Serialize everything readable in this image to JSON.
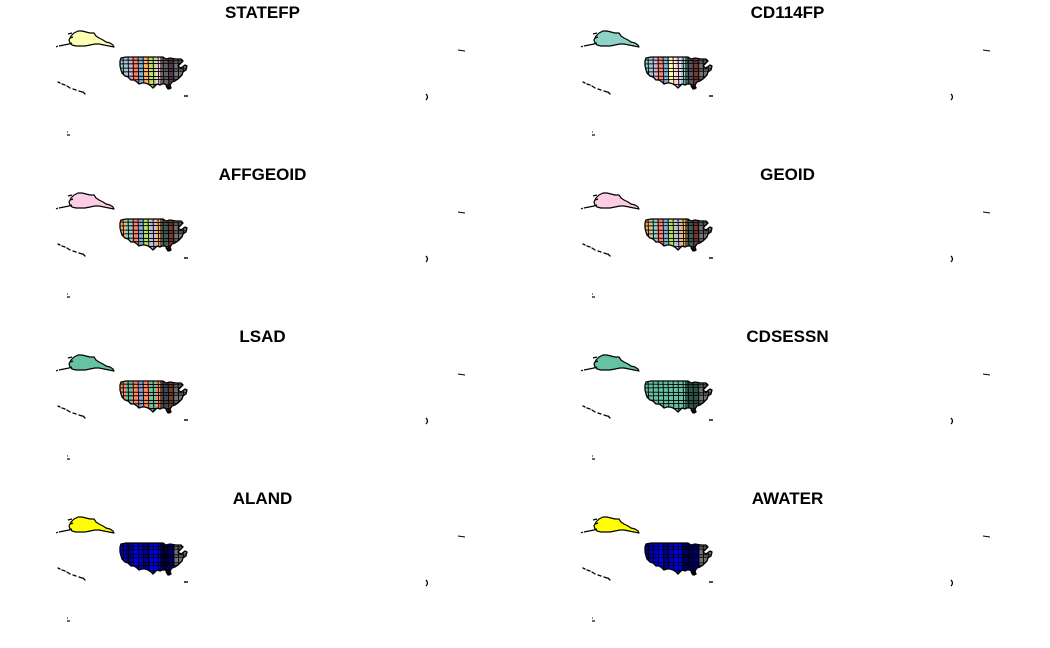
{
  "panels": [
    {
      "title": "STATEFP",
      "palette": "set2-pastel",
      "alaska": "#ffffb3",
      "conus": [
        "#8dd3c7",
        "#bebada",
        "#fb8072",
        "#80b1d3",
        "#fdb462",
        "#b3de69",
        "#fccde5",
        "#d9d9d9",
        "#bc80bd"
      ]
    },
    {
      "title": "CD114FP",
      "palette": "set3",
      "alaska": "#8dd3c7",
      "conus": [
        "#8dd3c7",
        "#bebada",
        "#fb8072",
        "#80b1d3",
        "#ffffb3",
        "#fccde5"
      ]
    },
    {
      "title": "AFFGEOID",
      "palette": "set3",
      "alaska": "#fccde5",
      "conus": [
        "#fdb462",
        "#8dd3c7",
        "#fb8072",
        "#80b1d3",
        "#b3de69",
        "#bebada"
      ]
    },
    {
      "title": "GEOID",
      "palette": "set3",
      "alaska": "#fccde5",
      "conus": [
        "#fdb462",
        "#8dd3c7",
        "#fb8072",
        "#80b1d3",
        "#b3de69",
        "#bebada"
      ]
    },
    {
      "title": "LSAD",
      "palette": "set2",
      "alaska": "#66c2a5",
      "conus": [
        "#fc8d62",
        "#66c2a5",
        "#fc8d62",
        "#8da0cb"
      ]
    },
    {
      "title": "CDSESSN",
      "palette": "set2",
      "alaska": "#66c2a5",
      "conus": [
        "#66c2a5"
      ]
    },
    {
      "title": "ALAND",
      "palette": "blue-yellow",
      "alaska": "#ffff00",
      "conus": [
        "#0000cc",
        "#00008b",
        "#0000ff"
      ]
    },
    {
      "title": "AWATER",
      "palette": "blue-yellow",
      "alaska": "#ffff00",
      "conus": [
        "#00008b",
        "#0000cc",
        "#0000ff"
      ]
    }
  ]
}
